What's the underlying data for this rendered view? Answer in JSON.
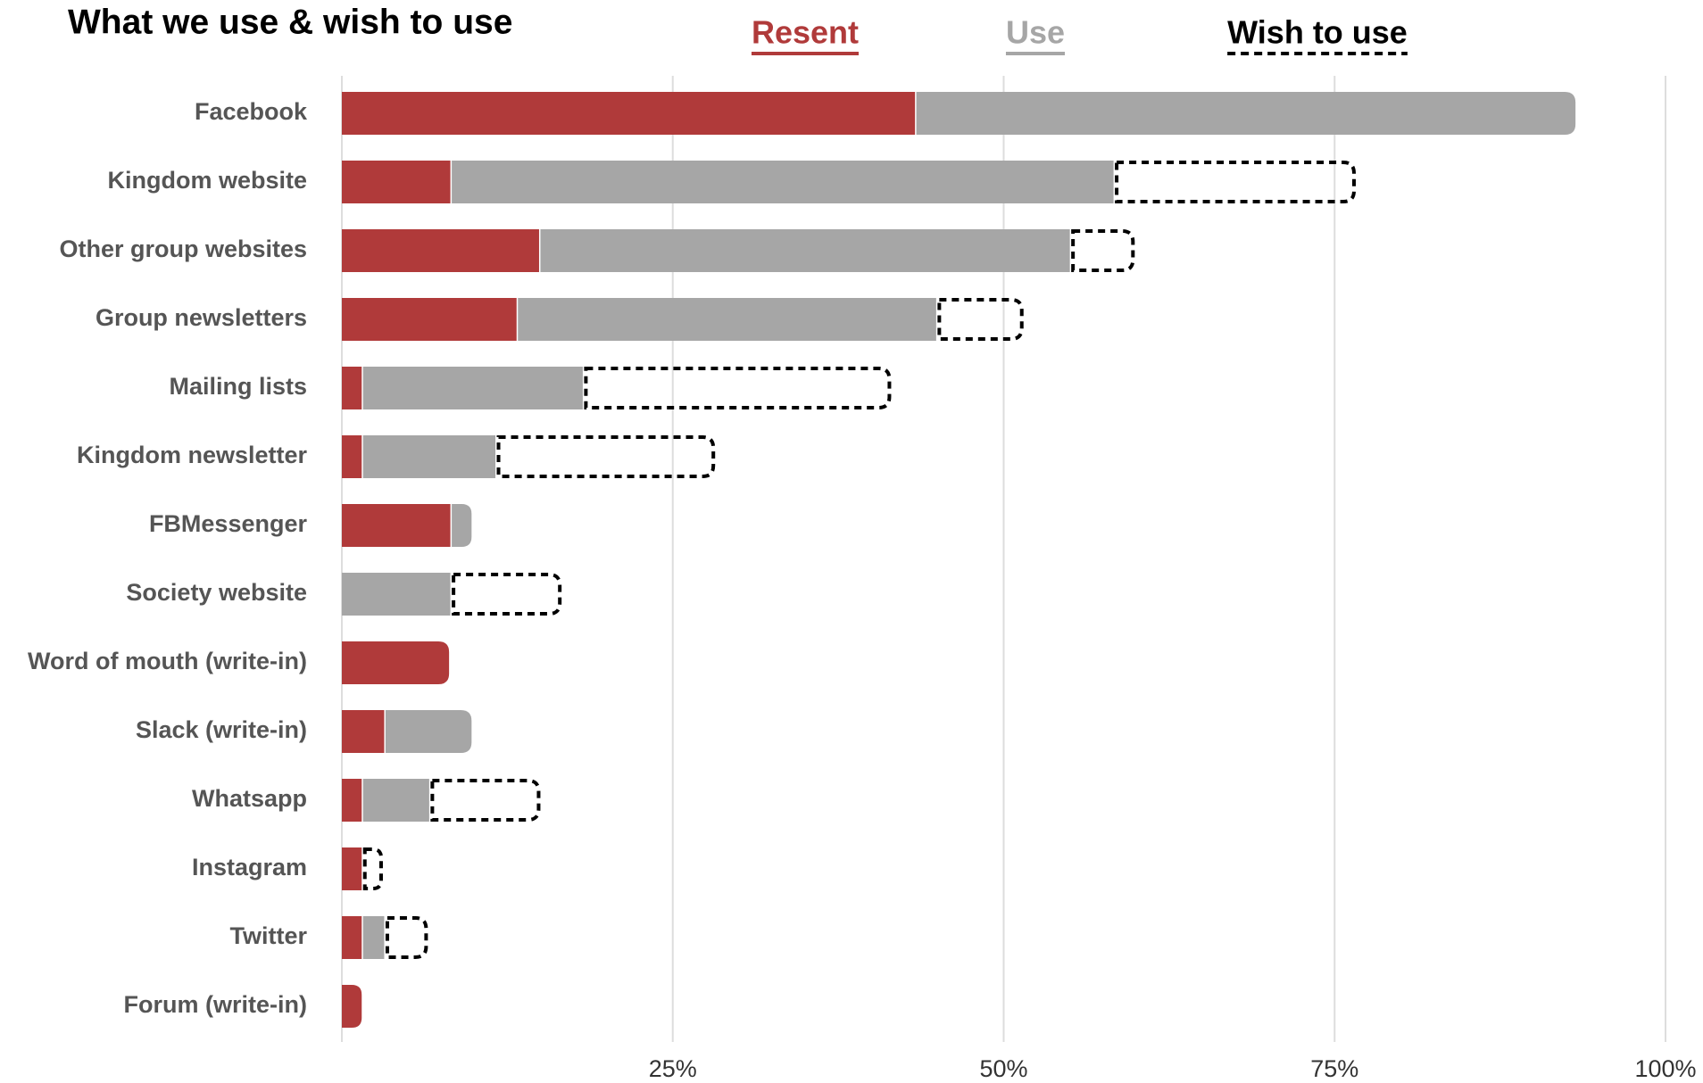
{
  "chart_data": {
    "type": "stacked-bar-horizontal",
    "title": "What we use & wish to use",
    "categories": [
      "Facebook",
      "Kingdom website",
      "Other group websites",
      "Group newsletters",
      "Mailing lists",
      "Kingdom newsletter",
      "FBMessenger",
      "Society website",
      "Word of mouth (write-in)",
      "Slack (write-in)",
      "Whatsapp",
      "Instagram",
      "Twitter",
      "Forum (write-in)"
    ],
    "series": [
      {
        "name": "Resent",
        "color": "#b03a3a",
        "dashed": false,
        "values": [
          43.3,
          8.2,
          14.9,
          13.2,
          1.5,
          1.5,
          8.2,
          null,
          8.1,
          3.2,
          1.5,
          1.5,
          1.5,
          1.5
        ]
      },
      {
        "name": "Use",
        "color": "#a6a6a6",
        "dashed": false,
        "values": [
          49.9,
          50.1,
          40.1,
          31.7,
          16.7,
          10.1,
          1.6,
          8.2,
          null,
          6.6,
          5.1,
          null,
          1.7,
          null
        ]
      },
      {
        "name": "Wish to use",
        "color": "#000000",
        "dashed": true,
        "values": [
          null,
          18.3,
          4.9,
          6.6,
          23.3,
          16.6,
          null,
          8.4,
          null,
          null,
          8.4,
          1.6,
          3.3,
          null
        ]
      }
    ],
    "xlim": [
      0,
      100
    ],
    "xticks": [
      {
        "value": 25,
        "label": "25%"
      },
      {
        "value": 50,
        "label": "50%"
      },
      {
        "value": 75,
        "label": "75%"
      },
      {
        "value": 100,
        "label": "100%"
      }
    ],
    "grid": true
  }
}
